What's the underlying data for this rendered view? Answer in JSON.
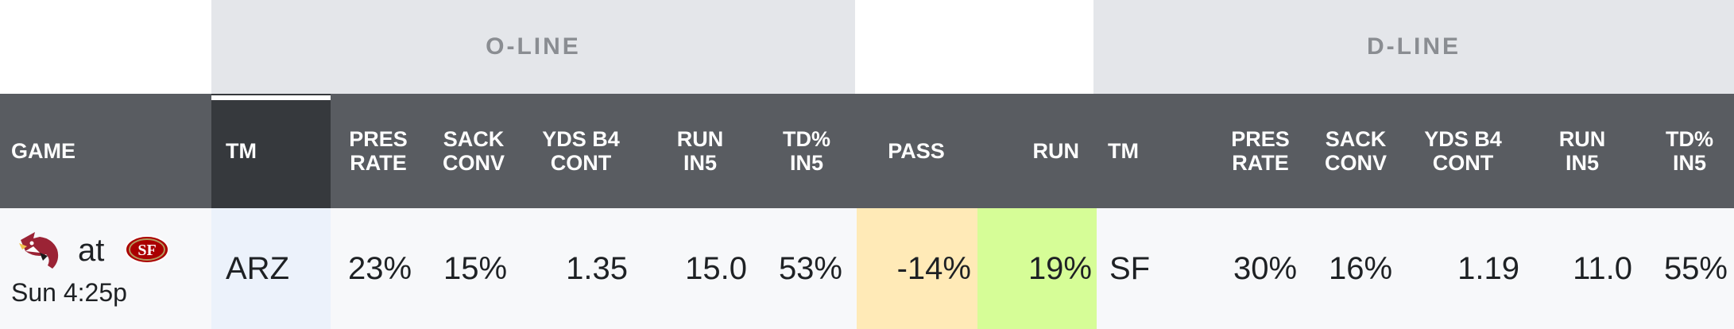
{
  "groups": {
    "oline": "O-LINE",
    "dline": "D-LINE"
  },
  "headers": {
    "game": "GAME",
    "tm": "TM",
    "pres_rate": "PRES\nRATE",
    "sack_conv": "SACK\nCONV",
    "yds_b4_cont": "YDS B4\nCONT",
    "run_in5": "RUN\nIN5",
    "td_in5": "TD%\nIN5",
    "pass": "PASS",
    "run": "RUN",
    "tm2": "TM",
    "pres_rate2": "PRES\nRATE",
    "sack_conv2": "SACK\nCONV",
    "yds_b4_cont2": "YDS B4\nCONT",
    "run_in52": "RUN\nIN5",
    "td_in52": "TD%\nIN5"
  },
  "row": {
    "game": {
      "at": "at",
      "time": "Sun 4:25p",
      "away_logo": "cardinals-logo-icon",
      "home_logo": "49ers-logo-icon"
    },
    "oline": {
      "tm": "ARZ",
      "pres_rate": "23%",
      "sack_conv": "15%",
      "yds_b4_cont": "1.35",
      "run_in5": "15.0",
      "td_in5": "53%"
    },
    "pass": "-14%",
    "run": "19%",
    "dline": {
      "tm": "SF",
      "pres_rate": "30%",
      "sack_conv": "16%",
      "yds_b4_cont": "1.19",
      "run_in5": "11.0",
      "td_in5": "55%"
    }
  },
  "colors": {
    "group_bg": "#e4e6ea",
    "header_bg": "#595c61",
    "tm_header_bg": "#36393d",
    "tm_cell_bg": "#ecf2fb",
    "pass_bg": "#ffeab7",
    "run_bg": "#d6fd97",
    "row_bg": "#f7f8fa"
  }
}
